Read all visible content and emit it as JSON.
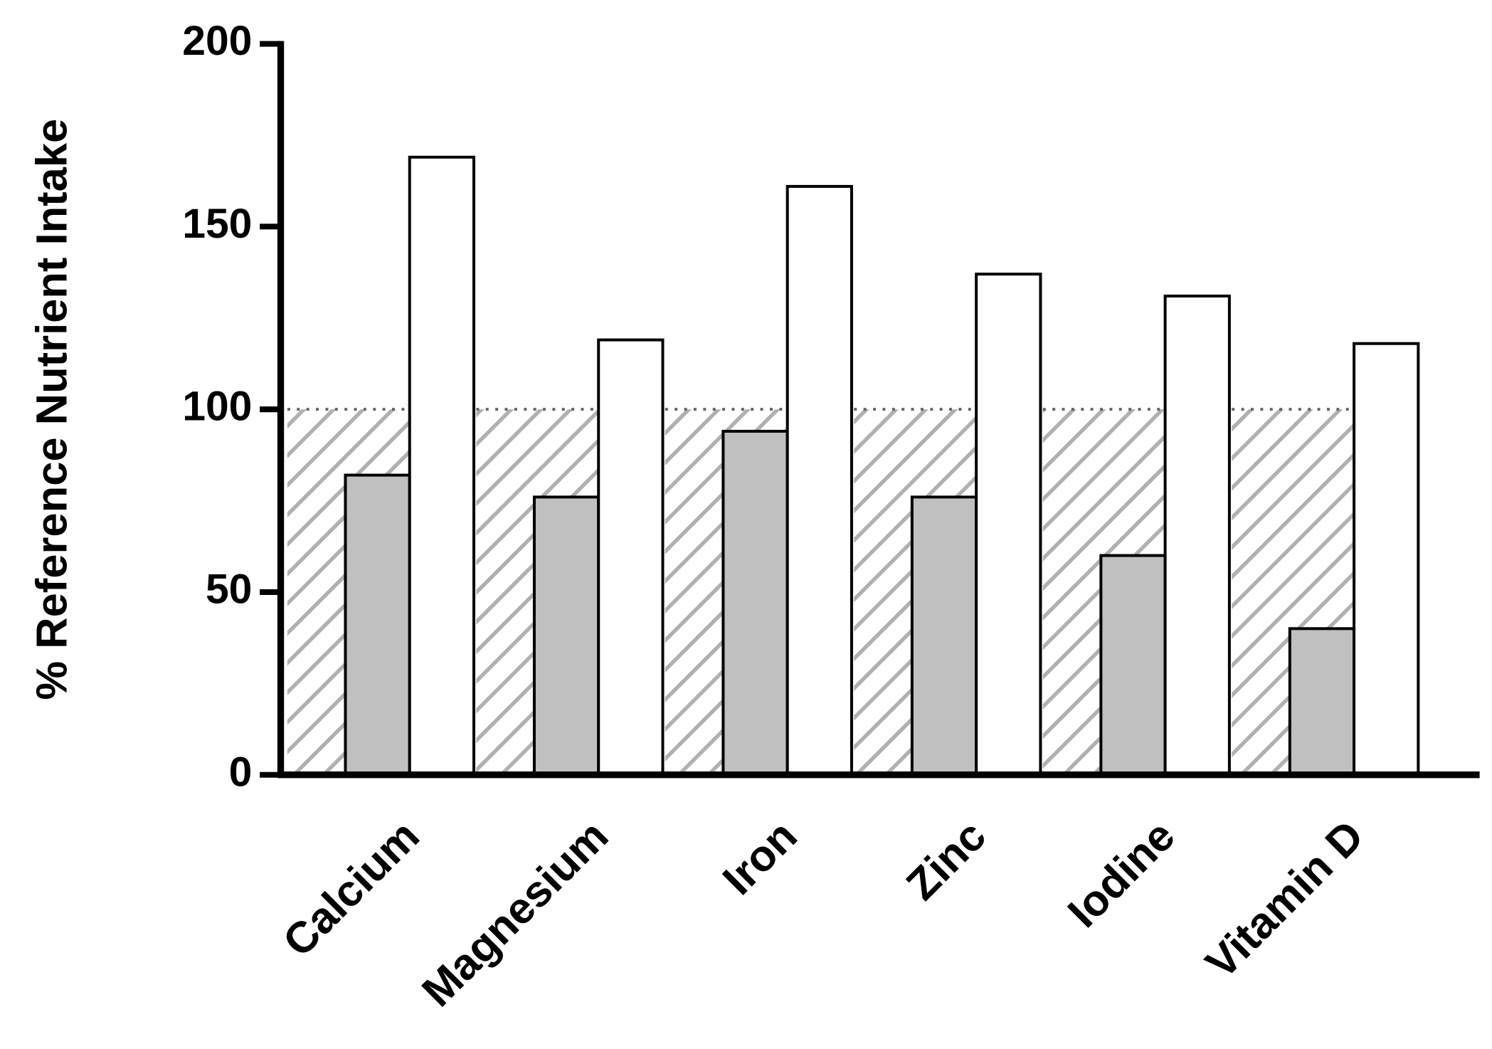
{
  "chart_data": {
    "type": "bar",
    "y_label": "% Reference Nutrient Intake",
    "categories": [
      "Calcium",
      "Magnesium",
      "Iron",
      "Zinc",
      "Iodine",
      "Vitamin D"
    ],
    "series": [
      {
        "color": "#c0c0c0",
        "values": [
          82,
          76,
          94,
          76,
          60,
          40
        ]
      },
      {
        "color": "#ffffff",
        "values": [
          169,
          119,
          161,
          137,
          131,
          118
        ]
      }
    ],
    "threshold": 100,
    "ylim": [
      0,
      200
    ],
    "yticks": [
      0,
      50,
      100,
      150,
      200
    ]
  }
}
